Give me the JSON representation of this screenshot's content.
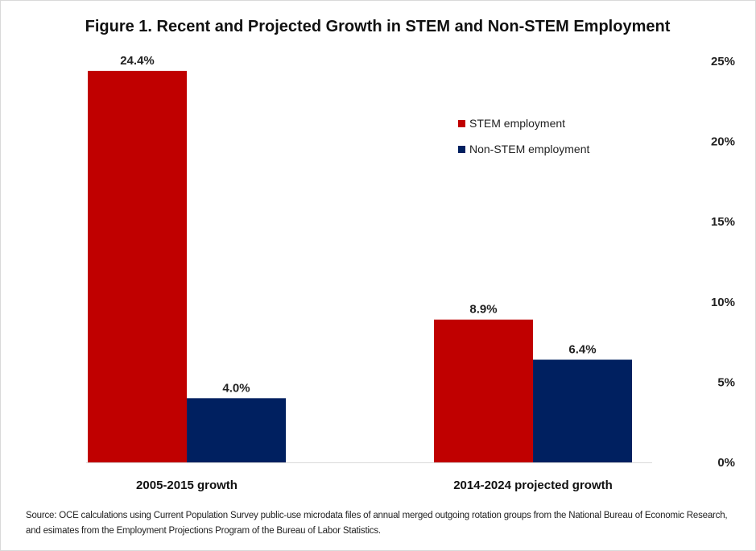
{
  "chart_data": {
    "type": "bar",
    "title": "Figure 1. Recent and Projected Growth in STEM and Non-STEM Employment",
    "xlabel": "",
    "ylabel": "",
    "categories": [
      "2005-2015 growth",
      "2014-2024 projected growth"
    ],
    "series": [
      {
        "name": "STEM employment",
        "color": "#c00000",
        "values": [
          24.4,
          8.9
        ],
        "labels": [
          "24.4%",
          "8.9%"
        ]
      },
      {
        "name": "Non-STEM employment",
        "color": "#002060",
        "values": [
          4.0,
          6.4
        ],
        "labels": [
          "4.0%",
          "6.4%"
        ]
      }
    ],
    "ylim": [
      0,
      25
    ],
    "yticks": [
      0,
      5,
      10,
      15,
      20,
      25
    ],
    "ytick_labels": [
      "0%",
      "5%",
      "10%",
      "15%",
      "20%",
      "25%"
    ],
    "yaxis_side": "right",
    "grid": false,
    "legend": {
      "placement": "top-right-inside"
    },
    "source": "Source: OCE calculations using Current Population Survey public-use  microdata files of annual merged outgoing rotation groups  from the National Bureau of Economic  Research, and esimates from the Employment  Projections Program of the Bureau of Labor Statistics."
  }
}
